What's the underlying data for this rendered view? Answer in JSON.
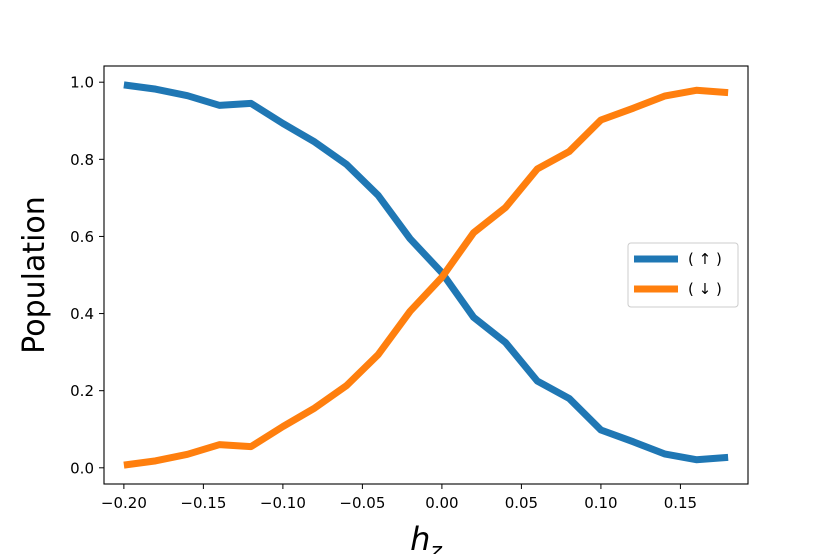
{
  "chart_data": {
    "type": "line",
    "title": "",
    "xlabel": "h_z",
    "ylabel": "Population",
    "xlim": [
      -0.2125,
      0.1925
    ],
    "ylim": [
      -0.042,
      1.042
    ],
    "grid": false,
    "legend_position": "center-right",
    "x": [
      -0.2,
      -0.18,
      -0.16,
      -0.14,
      -0.12,
      -0.1,
      -0.08,
      -0.06,
      -0.04,
      -0.02,
      0.0,
      0.02,
      0.04,
      0.06,
      0.08,
      0.1,
      0.12,
      0.14,
      0.16,
      0.18
    ],
    "xticks": [
      "−0.20",
      "−0.15",
      "−0.10",
      "−0.05",
      "0.00",
      "0.05",
      "0.10",
      "0.15"
    ],
    "xtick_values": [
      -0.2,
      -0.15,
      -0.1,
      -0.05,
      0.0,
      0.05,
      0.1,
      0.15
    ],
    "yticks": [
      "0.0",
      "0.2",
      "0.4",
      "0.6",
      "0.8",
      "1.0"
    ],
    "ytick_values": [
      0.0,
      0.2,
      0.4,
      0.6,
      0.8,
      1.0
    ],
    "series": [
      {
        "name": "( ↑ )",
        "color": "#1f77b4",
        "values": [
          0.993,
          0.982,
          0.965,
          0.94,
          0.945,
          0.893,
          0.845,
          0.787,
          0.706,
          0.594,
          0.506,
          0.39,
          0.325,
          0.225,
          0.18,
          0.098,
          0.068,
          0.036,
          0.021,
          0.027
        ]
      },
      {
        "name": "( ↓ )",
        "color": "#ff7f0e",
        "values": [
          0.007,
          0.018,
          0.035,
          0.06,
          0.055,
          0.107,
          0.155,
          0.213,
          0.294,
          0.406,
          0.494,
          0.61,
          0.675,
          0.775,
          0.82,
          0.902,
          0.932,
          0.964,
          0.979,
          0.973
        ]
      }
    ]
  }
}
